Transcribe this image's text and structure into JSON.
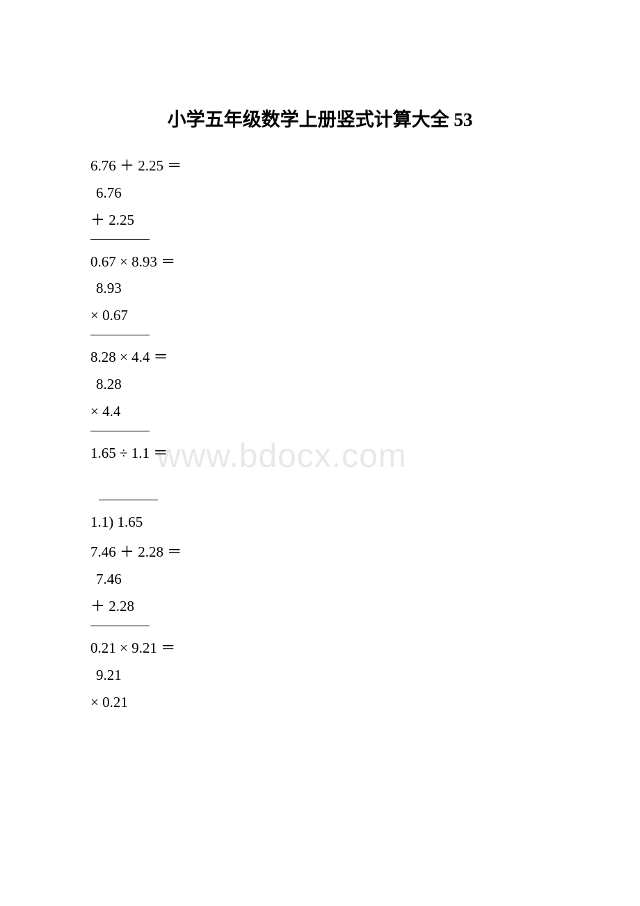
{
  "page": {
    "title": "小学五年级数学上册竖式计算大全 53",
    "watermark": "www.bdocx.com",
    "background_color": "#ffffff",
    "text_color": "#000000",
    "watermark_color": "#e8e8e8",
    "title_fontsize": 27,
    "body_fontsize": 21
  },
  "problems": [
    {
      "equation": "6.76 ＋ 2.25 ＝",
      "line1": "6.76",
      "line2": "＋ 2.25",
      "type": "addition"
    },
    {
      "equation": "0.67 × 8.93 ＝",
      "line1": "8.93",
      "line2": "× 0.67",
      "type": "multiplication"
    },
    {
      "equation": "8.28 × 4.4 ＝",
      "line1": "8.28",
      "line2": "×  4.4",
      "type": "multiplication"
    },
    {
      "equation": "1.65 ÷ 1.1 ＝",
      "divisor_dividend": "1.1) 1.65",
      "type": "division"
    },
    {
      "equation": "7.46 ＋ 2.28 ＝",
      "line1": "7.46",
      "line2": "＋ 2.28",
      "type": "addition"
    },
    {
      "equation": "0.21 × 9.21 ＝",
      "line1": "9.21",
      "line2": "× 0.21",
      "type": "multiplication"
    }
  ]
}
